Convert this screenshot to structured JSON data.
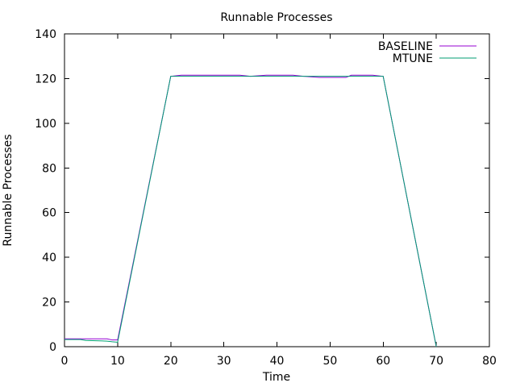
{
  "chart_data": {
    "type": "line",
    "title": "Runnable Processes",
    "xlabel": "Time",
    "ylabel": "Runnable Processes",
    "xlim": [
      0,
      80
    ],
    "ylim": [
      0,
      140
    ],
    "xticks": [
      0,
      10,
      20,
      30,
      40,
      50,
      60,
      70,
      80
    ],
    "yticks": [
      0,
      20,
      40,
      60,
      80,
      100,
      120,
      140
    ],
    "grid": false,
    "background_color": "#ffffff",
    "axis_color": "#000000",
    "legend_position": "top-right-inside",
    "legend_entries": [
      "BASELINE",
      "MTUNE"
    ],
    "series": [
      {
        "name": "BASELINE",
        "color": "#9400d3",
        "points": [
          [
            0,
            3.5
          ],
          [
            8,
            3.5
          ],
          [
            9,
            3
          ],
          [
            10,
            3
          ],
          [
            20,
            121
          ],
          [
            22,
            121.5
          ],
          [
            33,
            121.5
          ],
          [
            35,
            121
          ],
          [
            38,
            121.5
          ],
          [
            43,
            121.5
          ],
          [
            45,
            121
          ],
          [
            48,
            120.5
          ],
          [
            53,
            120.5
          ],
          [
            54,
            121.5
          ],
          [
            58,
            121.5
          ],
          [
            60,
            121
          ],
          [
            70,
            0
          ]
        ]
      },
      {
        "name": "MTUNE",
        "color": "#009e73",
        "points": [
          [
            0,
            3.2
          ],
          [
            3,
            3.2
          ],
          [
            4,
            2.8
          ],
          [
            8,
            2.5
          ],
          [
            9,
            2.2
          ],
          [
            10,
            2
          ],
          [
            20,
            121
          ],
          [
            60,
            121
          ],
          [
            70,
            0
          ]
        ]
      }
    ]
  }
}
